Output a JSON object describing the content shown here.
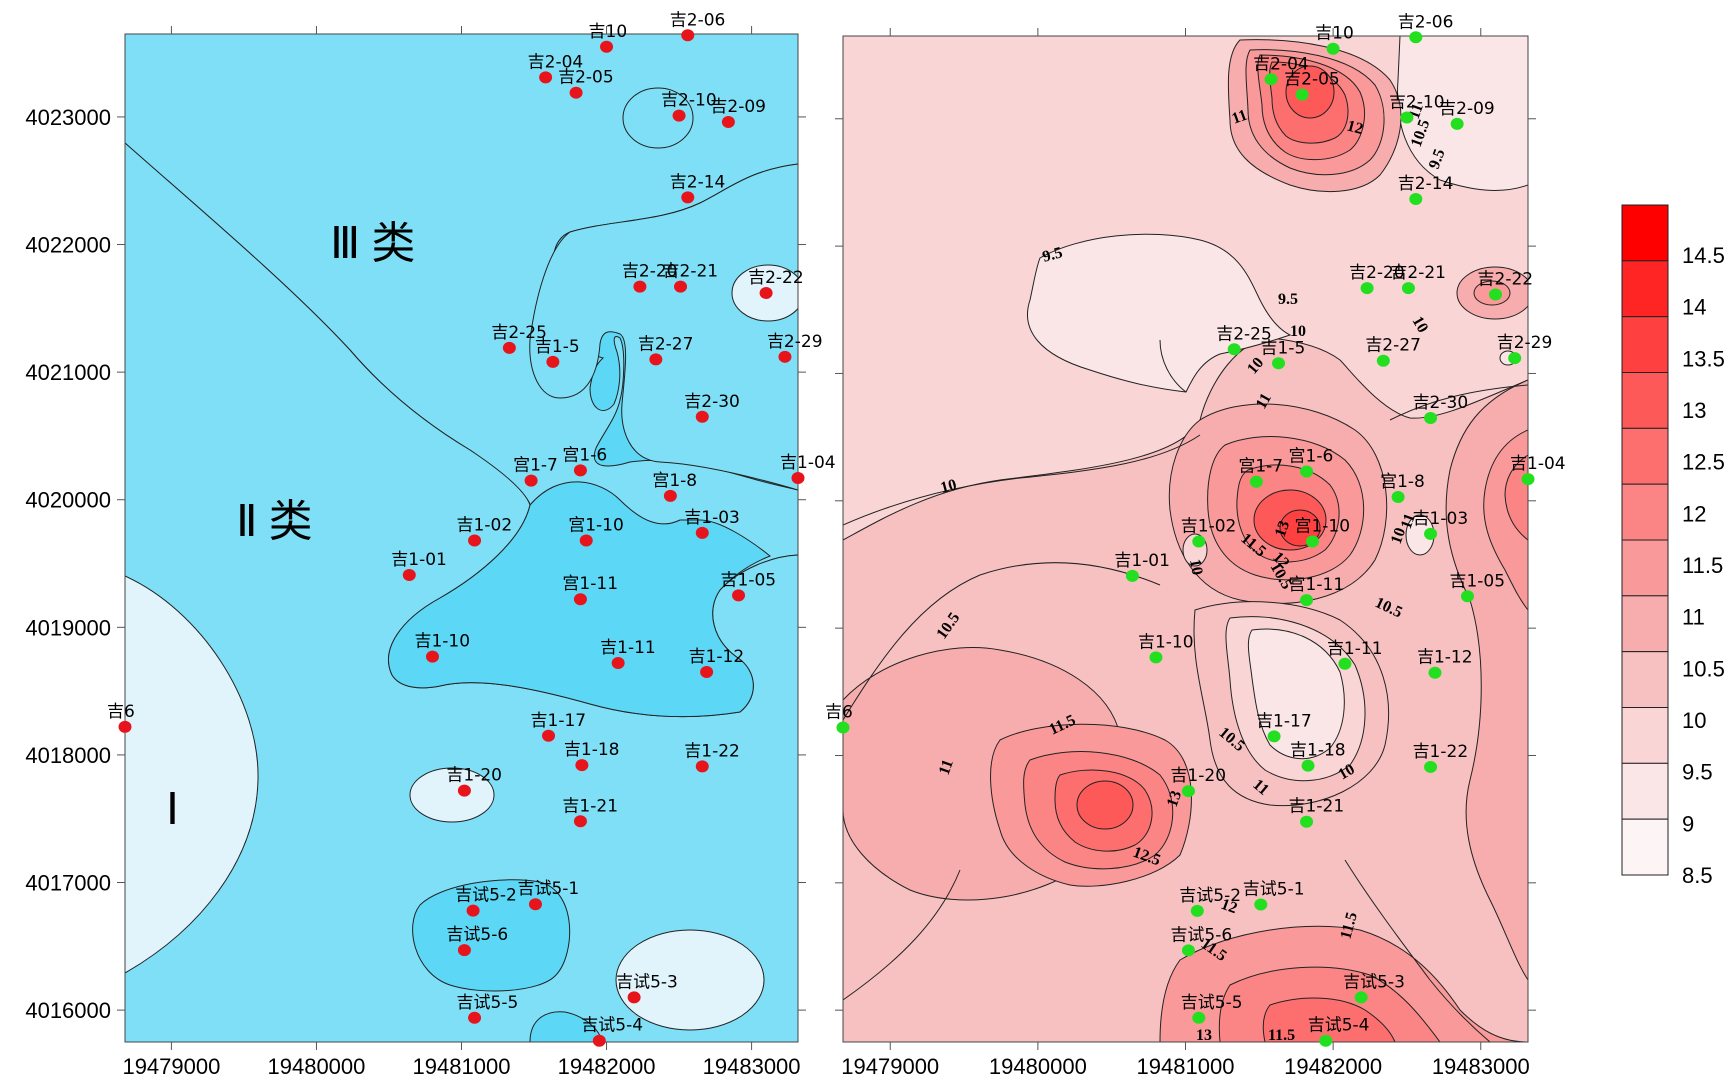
{
  "axes": {
    "x_ticks": [
      19479000,
      19480000,
      19481000,
      19482000,
      19483000
    ],
    "y_ticks": [
      4016000,
      4017000,
      4018000,
      4019000,
      4020000,
      4021000,
      4022000,
      4023000
    ],
    "x_range": [
      19478680,
      19483320
    ],
    "y_range": [
      4015750,
      4023650
    ]
  },
  "left_map": {
    "classes": [
      {
        "label": "Ⅰ",
        "color": "#e1f3fb"
      },
      {
        "label": "Ⅱ 类",
        "color": "#7fdff6"
      },
      {
        "label": "Ⅲ 类",
        "color": "#5cd8f6"
      }
    ],
    "well_marker_color": "#e8141b"
  },
  "right_map": {
    "well_marker_color": "#22e01f",
    "contour_labels": [
      "9.5",
      "9.5",
      "10",
      "10",
      "10",
      "10",
      "10",
      "10",
      "10",
      "10.5",
      "10.5",
      "10.5",
      "10.5",
      "11",
      "11",
      "11",
      "11",
      "11",
      "11.5",
      "11.5",
      "11.5",
      "11.5",
      "11.5",
      "12",
      "12",
      "12",
      "12.5",
      "13",
      "13",
      "13",
      "9.5",
      "11",
      "10.5"
    ]
  },
  "colorbar": {
    "labels": [
      "14.5",
      "14",
      "13.5",
      "13",
      "12.5",
      "12",
      "11.5",
      "11",
      "10.5",
      "10",
      "9.5",
      "9",
      "8.5"
    ],
    "colors": [
      "#ff0000",
      "#ff2525",
      "#ff4040",
      "#fe5959",
      "#fd6f6f",
      "#fb8585",
      "#f99999",
      "#f7adad",
      "#f7c1c1",
      "#f9d5d5",
      "#fae6e6",
      "#fdf5f5"
    ]
  },
  "wells": [
    {
      "name": "吉10",
      "x": 19482000,
      "y": 4023550
    },
    {
      "name": "吉2-06",
      "x": 19482560,
      "y": 4023640
    },
    {
      "name": "吉2-04",
      "x": 19481580,
      "y": 4023310
    },
    {
      "name": "吉2-05",
      "x": 19481790,
      "y": 4023190
    },
    {
      "name": "吉2-10",
      "x": 19482500,
      "y": 4023010
    },
    {
      "name": "吉2-09",
      "x": 19482840,
      "y": 4022960
    },
    {
      "name": "吉2-14",
      "x": 19482560,
      "y": 4022370
    },
    {
      "name": "吉2-20",
      "x": 19482230,
      "y": 4021670
    },
    {
      "name": "吉2-21",
      "x": 19482510,
      "y": 4021670
    },
    {
      "name": "吉2-22",
      "x": 19483100,
      "y": 4021620
    },
    {
      "name": "吉2-25",
      "x": 19481330,
      "y": 4021190
    },
    {
      "name": "吉1-5",
      "x": 19481630,
      "y": 4021080
    },
    {
      "name": "吉2-27",
      "x": 19482340,
      "y": 4021100
    },
    {
      "name": "吉2-29",
      "x": 19483230,
      "y": 4021120
    },
    {
      "name": "吉2-30",
      "x": 19482660,
      "y": 4020650
    },
    {
      "name": "吉1-04",
      "x": 19483320,
      "y": 4020170
    },
    {
      "name": "宫1-6",
      "x": 19481820,
      "y": 4020230
    },
    {
      "name": "宫1-7",
      "x": 19481480,
      "y": 4020150
    },
    {
      "name": "宫1-8",
      "x": 19482440,
      "y": 4020030
    },
    {
      "name": "吉1-02",
      "x": 19481090,
      "y": 4019680
    },
    {
      "name": "宫1-10",
      "x": 19481860,
      "y": 4019680
    },
    {
      "name": "吉1-03",
      "x": 19482660,
      "y": 4019740
    },
    {
      "name": "吉1-01",
      "x": 19480640,
      "y": 4019410
    },
    {
      "name": "宫1-11",
      "x": 19481820,
      "y": 4019220
    },
    {
      "name": "吉1-05",
      "x": 19482910,
      "y": 4019250
    },
    {
      "name": "吉1-10",
      "x": 19480800,
      "y": 4018770
    },
    {
      "name": "吉1-11",
      "x": 19482080,
      "y": 4018720
    },
    {
      "name": "吉1-12",
      "x": 19482690,
      "y": 4018650
    },
    {
      "name": "吉6",
      "x": 19478680,
      "y": 4018220
    },
    {
      "name": "吉1-17",
      "x": 19481600,
      "y": 4018150
    },
    {
      "name": "吉1-18",
      "x": 19481830,
      "y": 4017920
    },
    {
      "name": "吉1-22",
      "x": 19482660,
      "y": 4017910
    },
    {
      "name": "吉1-20",
      "x": 19481020,
      "y": 4017720
    },
    {
      "name": "吉1-21",
      "x": 19481820,
      "y": 4017480
    },
    {
      "name": "吉试5-2",
      "x": 19481080,
      "y": 4016780
    },
    {
      "name": "吉试5-1",
      "x": 19481510,
      "y": 4016830
    },
    {
      "name": "吉试5-6",
      "x": 19481020,
      "y": 4016470
    },
    {
      "name": "吉试5-3",
      "x": 19482190,
      "y": 4016100
    },
    {
      "name": "吉试5-5",
      "x": 19481090,
      "y": 4015940
    },
    {
      "name": "吉试5-4",
      "x": 19481950,
      "y": 4015760
    }
  ]
}
